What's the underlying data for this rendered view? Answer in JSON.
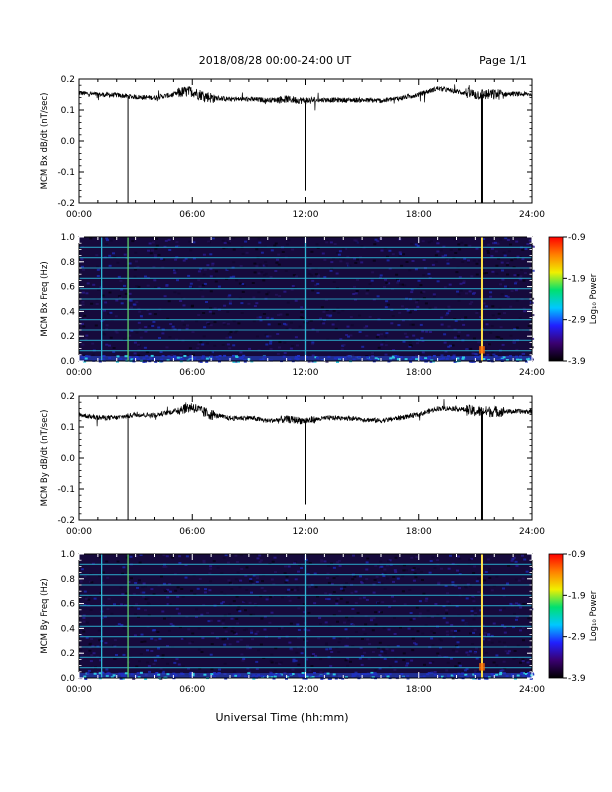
{
  "header": {
    "title": "2018/08/28  00:00-24:00 UT",
    "page_label": "Page 1/1"
  },
  "footer": {
    "xlabel": "Universal Time (hh:mm)"
  },
  "colors": {
    "trace": "#000000",
    "spec_background": "#160a3c",
    "spec_harmonic": "#2aa8c8",
    "spike_strong": "#ffe14a",
    "spike_mid": "#5fd06a",
    "spike_weak": "#30b4d4"
  },
  "colorbar": {
    "tick_labels": [
      "-0.9",
      "-1.9",
      "-2.9",
      "-3.9"
    ],
    "label": "Log₁₀ Power",
    "range": [
      -3.9,
      -0.9
    ],
    "colormap": [
      "#000000",
      "#3a0070",
      "#2020ff",
      "#00c8ff",
      "#00e070",
      "#f0f000",
      "#ff8000",
      "#ff0000"
    ]
  },
  "chart_data": [
    {
      "type": "line",
      "ylabel": "MCM Bx dB/dt (nT/sec)",
      "xlim": [
        0,
        24
      ],
      "ylim": [
        -0.2,
        0.2
      ],
      "x_tick_labels": [
        "00:00",
        "06:00",
        "12:00",
        "18:00",
        "24:00"
      ],
      "y_tick_labels": [
        "0.2",
        "0.1",
        "0.0",
        "-0.1",
        "-0.2"
      ],
      "y_ticks": [
        0.2,
        0.1,
        0.0,
        -0.1,
        -0.2
      ],
      "series": [
        {
          "x": [
            0,
            1,
            2,
            3,
            4,
            5,
            5.5,
            6,
            6.3,
            7,
            8,
            9,
            10,
            11,
            12,
            13,
            14,
            15,
            16,
            17,
            18,
            19,
            20,
            21,
            22,
            23,
            24
          ],
          "values": [
            0.155,
            0.15,
            0.148,
            0.142,
            0.14,
            0.15,
            0.158,
            0.16,
            0.152,
            0.14,
            0.135,
            0.135,
            0.132,
            0.135,
            0.13,
            0.133,
            0.132,
            0.132,
            0.13,
            0.138,
            0.15,
            0.17,
            0.16,
            0.15,
            0.15,
            0.152,
            0.15
          ]
        }
      ],
      "dropouts": [
        {
          "x": 2.6,
          "y": -0.2
        },
        {
          "x": 12.0,
          "y": -0.16
        },
        {
          "x": 21.35,
          "y": -0.2
        }
      ]
    },
    {
      "type": "heatmap",
      "ylabel": "MCM Bx Freq (Hz)",
      "xlim": [
        0,
        24
      ],
      "ylim": [
        0.0,
        1.0
      ],
      "x_tick_labels": [
        "00:00",
        "06:00",
        "12:00",
        "18:00",
        "24:00"
      ],
      "y_tick_labels": [
        "1.0",
        "0.8",
        "0.6",
        "0.4",
        "0.2",
        "0.0"
      ],
      "y_ticks": [
        1.0,
        0.8,
        0.6,
        0.4,
        0.2,
        0.0
      ],
      "harmonic_freqs_hz": [
        0.083,
        0.167,
        0.25,
        0.333,
        0.417,
        0.5,
        0.583,
        0.667,
        0.75,
        0.833,
        0.917,
        1.0
      ],
      "broadband_spikes": [
        {
          "x": 1.2,
          "level": "weak"
        },
        {
          "x": 2.6,
          "level": "mid"
        },
        {
          "x": 12.0,
          "level": "weak"
        },
        {
          "x": 21.35,
          "level": "strong"
        }
      ],
      "colorbar_range": [
        -3.9,
        -0.9
      ]
    },
    {
      "type": "line",
      "ylabel": "MCM By dB/dt (nT/sec)",
      "xlim": [
        0,
        24
      ],
      "ylim": [
        -0.2,
        0.2
      ],
      "x_tick_labels": [
        "00:00",
        "06:00",
        "12:00",
        "18:00",
        "24:00"
      ],
      "y_tick_labels": [
        "0.2",
        "0.1",
        "0.0",
        "-0.1",
        "-0.2"
      ],
      "y_ticks": [
        0.2,
        0.1,
        0.0,
        -0.1,
        -0.2
      ],
      "series": [
        {
          "x": [
            0,
            1,
            2,
            3,
            4,
            5,
            5.5,
            6,
            6.5,
            7,
            8,
            9,
            10,
            11,
            12,
            13,
            14,
            15,
            16,
            17,
            18,
            19,
            20,
            21,
            22,
            23,
            24
          ],
          "values": [
            0.14,
            0.13,
            0.13,
            0.14,
            0.138,
            0.15,
            0.16,
            0.165,
            0.15,
            0.14,
            0.128,
            0.13,
            0.12,
            0.125,
            0.12,
            0.128,
            0.13,
            0.125,
            0.12,
            0.13,
            0.14,
            0.16,
            0.16,
            0.15,
            0.15,
            0.15,
            0.15
          ]
        }
      ],
      "dropouts": [
        {
          "x": 2.6,
          "y": -0.2
        },
        {
          "x": 12.0,
          "y": -0.15
        },
        {
          "x": 21.35,
          "y": -0.2
        }
      ]
    },
    {
      "type": "heatmap",
      "ylabel": "MCM By Freq (Hz)",
      "xlim": [
        0,
        24
      ],
      "ylim": [
        0.0,
        1.0
      ],
      "x_tick_labels": [
        "00:00",
        "06:00",
        "12:00",
        "18:00",
        "24:00"
      ],
      "y_tick_labels": [
        "1.0",
        "0.8",
        "0.6",
        "0.4",
        "0.2",
        "0.0"
      ],
      "y_ticks": [
        1.0,
        0.8,
        0.6,
        0.4,
        0.2,
        0.0
      ],
      "harmonic_freqs_hz": [
        0.083,
        0.167,
        0.25,
        0.333,
        0.417,
        0.5,
        0.583,
        0.667,
        0.75,
        0.833,
        0.917,
        1.0
      ],
      "broadband_spikes": [
        {
          "x": 1.2,
          "level": "weak"
        },
        {
          "x": 2.6,
          "level": "mid"
        },
        {
          "x": 12.0,
          "level": "weak"
        },
        {
          "x": 21.35,
          "level": "strong"
        }
      ],
      "colorbar_range": [
        -3.9,
        -0.9
      ]
    }
  ]
}
